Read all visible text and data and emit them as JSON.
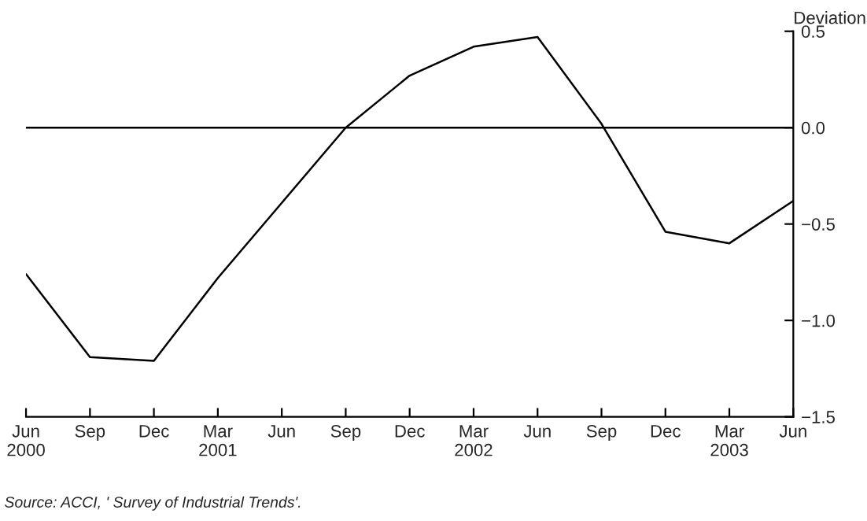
{
  "chart_data": {
    "type": "line",
    "categories": [
      "Jun\n2000",
      "Sep",
      "Dec",
      "Mar\n2001",
      "Jun",
      "Sep",
      "Dec",
      "Mar\n2002",
      "Jun",
      "Sep",
      "Dec",
      "Mar\n2003",
      "Jun"
    ],
    "series": [
      {
        "color": "#000000",
        "values": [
          -0.76,
          -1.19,
          -1.21,
          -0.78,
          -0.39,
          0.0,
          0.27,
          0.42,
          0.47,
          0.02,
          -0.54,
          -0.6,
          -0.38
        ]
      }
    ],
    "ylabel": "Deviation",
    "ylim": [
      -1.5,
      0.5
    ],
    "yticks": [
      {
        "value": -1.5,
        "label": "−1.5"
      },
      {
        "value": -1.0,
        "label": "−1.0"
      },
      {
        "value": -0.5,
        "label": "−0.5"
      },
      {
        "value": 0.0,
        "label": "0.0"
      },
      0.5
    ],
    "ref_lines": [
      {
        "axis": "y",
        "value": 0,
        "label": null,
        "color": "#000000"
      }
    ],
    "annotations": [
      "Source: ACCI, ' Survey of Industrial Trends'."
    ],
    "grid": false,
    "legend": false,
    "marker": "none",
    "line_style": "solid"
  }
}
